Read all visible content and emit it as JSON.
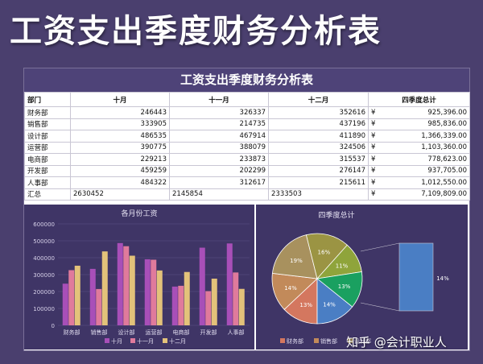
{
  "banner_title": "工资支出季度财务分析表",
  "table": {
    "title": "工资支出季度财务分析表",
    "headers": [
      "部门",
      "十月",
      "十一月",
      "十二月",
      "四季度总计"
    ],
    "currency_symbol": "¥",
    "rows": [
      {
        "dept": "财务部",
        "oct": "246443",
        "nov": "326337",
        "dec": "352616",
        "total": "925,396.00"
      },
      {
        "dept": "销售部",
        "oct": "333905",
        "nov": "214735",
        "dec": "437196",
        "total": "985,836.00"
      },
      {
        "dept": "设计部",
        "oct": "486535",
        "nov": "467914",
        "dec": "411890",
        "total": "1,366,339.00"
      },
      {
        "dept": "运营部",
        "oct": "390775",
        "nov": "388079",
        "dec": "324506",
        "total": "1,103,360.00"
      },
      {
        "dept": "电商部",
        "oct": "229213",
        "nov": "233873",
        "dec": "315537",
        "total": "778,623.00"
      },
      {
        "dept": "开发部",
        "oct": "459259",
        "nov": "202299",
        "dec": "276147",
        "total": "937,705.00"
      },
      {
        "dept": "人事部",
        "oct": "484322",
        "nov": "312617",
        "dec": "215611",
        "total": "1,012,550.00"
      }
    ],
    "summary": {
      "dept": "汇总",
      "oct": "2630452",
      "nov": "2145854",
      "dec": "2333503",
      "total": "7,109,809.00"
    }
  },
  "chart_data": [
    {
      "type": "bar",
      "title": "各月份工资",
      "categories": [
        "财务部",
        "销售部",
        "设计部",
        "运营部",
        "电商部",
        "开发部",
        "人事部"
      ],
      "series": [
        {
          "name": "十月",
          "values": [
            246443,
            333905,
            486535,
            390775,
            229213,
            459259,
            484322
          ],
          "color": "#a84fb8"
        },
        {
          "name": "十一月",
          "values": [
            326337,
            214735,
            467914,
            388079,
            233873,
            202299,
            312617
          ],
          "color": "#e07a9c"
        },
        {
          "name": "十二月",
          "values": [
            352616,
            437196,
            411890,
            324506,
            315537,
            276147,
            215611
          ],
          "color": "#e3c27a"
        }
      ],
      "yticks": [
        "0",
        "100000",
        "200000",
        "300000",
        "400000",
        "500000",
        "600000"
      ],
      "ylim": [
        0,
        600000
      ],
      "grid": true,
      "legend": "bottom"
    },
    {
      "type": "pie",
      "title": "四季度总计",
      "slices": [
        {
          "name": "财务部",
          "value": 925396,
          "label": "13%",
          "color": "#d4775f"
        },
        {
          "name": "销售部",
          "value": 985836,
          "label": "14%",
          "color": "#c28a5a"
        },
        {
          "name": "设计部",
          "value": 1366339,
          "label": "19%",
          "color": "#a8915e"
        },
        {
          "name": "运营部",
          "value": 1103360,
          "label": "16%",
          "color": "#9b9443"
        },
        {
          "name": "电商部",
          "value": 778623,
          "label": "11%",
          "color": "#8fa43b"
        },
        {
          "name": "开发部",
          "value": 937705,
          "label": "13%",
          "color": "#1aa060"
        },
        {
          "name": "人事部",
          "value": 1012550,
          "label": "14%",
          "color": "#4a7ec4"
        }
      ],
      "exploded_label": "14%",
      "legend_visible": [
        "财务部",
        "销售部",
        "设计部"
      ],
      "legend": "bottom"
    }
  ],
  "watermark": "知乎 @会计职业人"
}
